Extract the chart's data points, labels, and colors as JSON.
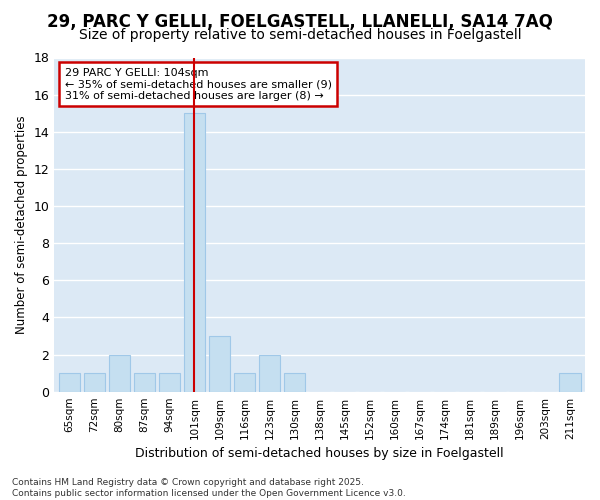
{
  "title": "29, PARC Y GELLI, FOELGASTELL, LLANELLI, SA14 7AQ",
  "subtitle": "Size of property relative to semi-detached houses in Foelgastell",
  "xlabel": "Distribution of semi-detached houses by size in Foelgastell",
  "ylabel": "Number of semi-detached properties",
  "categories": [
    "65sqm",
    "72sqm",
    "80sqm",
    "87sqm",
    "94sqm",
    "101sqm",
    "109sqm",
    "116sqm",
    "123sqm",
    "130sqm",
    "138sqm",
    "145sqm",
    "152sqm",
    "160sqm",
    "167sqm",
    "174sqm",
    "181sqm",
    "189sqm",
    "196sqm",
    "203sqm",
    "211sqm"
  ],
  "values": [
    1,
    1,
    2,
    1,
    1,
    15,
    3,
    1,
    2,
    1,
    0,
    0,
    0,
    0,
    0,
    0,
    0,
    0,
    0,
    0,
    1
  ],
  "bar_color": "#c5dff0",
  "bar_edge_color": "#a0c8e8",
  "highlight_bar_index": 5,
  "highlight_line_color": "#cc0000",
  "property_size": "104sqm",
  "pct_smaller": 35,
  "count_smaller": 9,
  "pct_larger": 31,
  "count_larger": 8,
  "annotation_box_color": "#ffffff",
  "annotation_box_edge": "#cc0000",
  "ylim": [
    0,
    18
  ],
  "yticks": [
    0,
    2,
    4,
    6,
    8,
    10,
    12,
    14,
    16,
    18
  ],
  "fig_bg_color": "#ffffff",
  "plot_bg_color": "#dce9f5",
  "grid_color": "#ffffff",
  "title_fontsize": 12,
  "subtitle_fontsize": 10,
  "footer_text": "Contains HM Land Registry data © Crown copyright and database right 2025.\nContains public sector information licensed under the Open Government Licence v3.0."
}
